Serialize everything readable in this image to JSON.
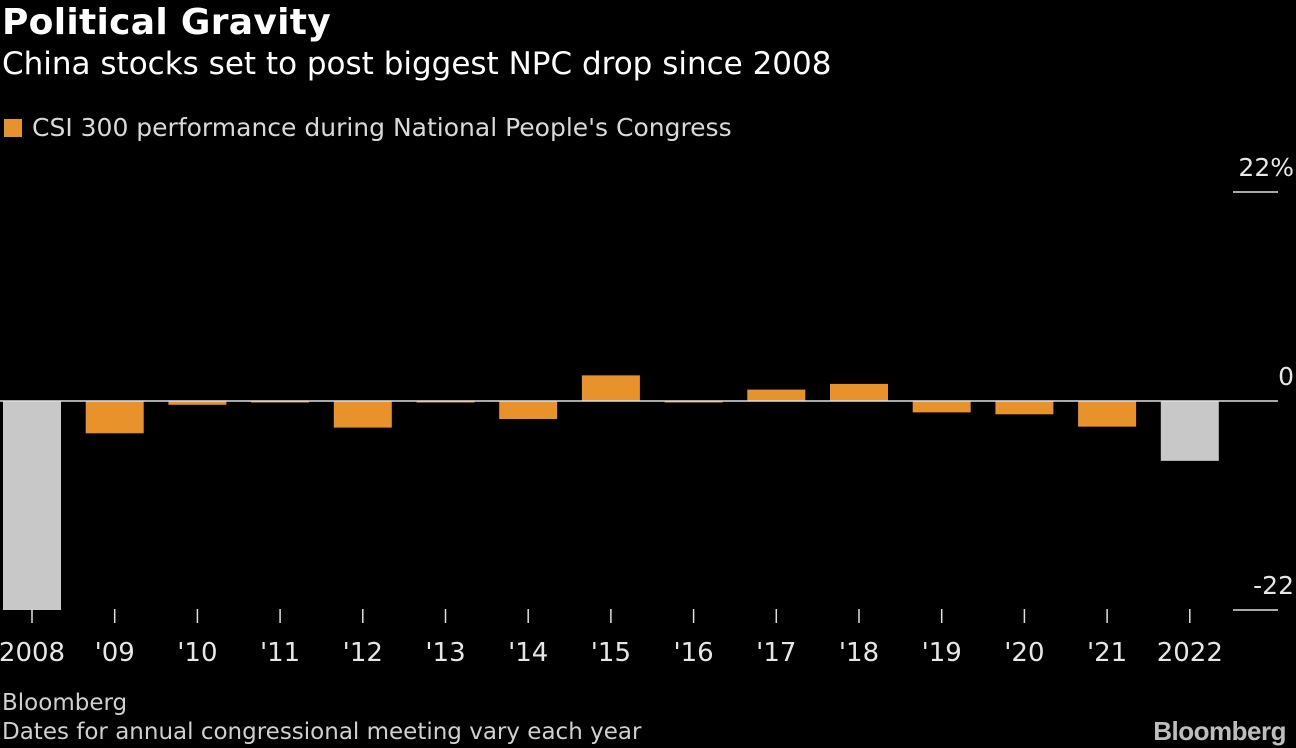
{
  "header": {
    "title": "Political Gravity",
    "subtitle": "China stocks set to post biggest NPC drop since 2008"
  },
  "legend": {
    "label": "CSI 300 performance during National People's Congress",
    "color": "#e8922b"
  },
  "footer": {
    "source": "Bloomberg",
    "note": "Dates for annual congressional meeting vary each year",
    "brand": "Bloomberg"
  },
  "colors": {
    "highlight_bar": "#c8c8c8",
    "series_bar": "#e8922b",
    "axis_line": "#e0e0e0",
    "text": "#ffffff",
    "tick_text": "#e6e6e6"
  },
  "chart_data": {
    "type": "bar",
    "categories": [
      "2008",
      "'09",
      "'10",
      "'11",
      "'12",
      "'13",
      "'14",
      "'15",
      "'16",
      "'17",
      "'18",
      "'19",
      "'20",
      "'21",
      "2022"
    ],
    "values": [
      -22.0,
      -3.4,
      -0.4,
      -0.1,
      -2.8,
      -0.15,
      -1.9,
      2.7,
      -0.1,
      1.2,
      1.8,
      -1.2,
      -1.4,
      -2.7,
      -6.3
    ],
    "highlight": [
      true,
      false,
      false,
      false,
      false,
      false,
      false,
      false,
      false,
      false,
      false,
      false,
      false,
      false,
      true
    ],
    "ylim": [
      -22,
      22
    ],
    "yticks": [
      22,
      0,
      -22
    ],
    "ytick_labels": [
      "22%",
      "0",
      "-22"
    ],
    "xlabel": "",
    "ylabel": "",
    "grid": false
  }
}
